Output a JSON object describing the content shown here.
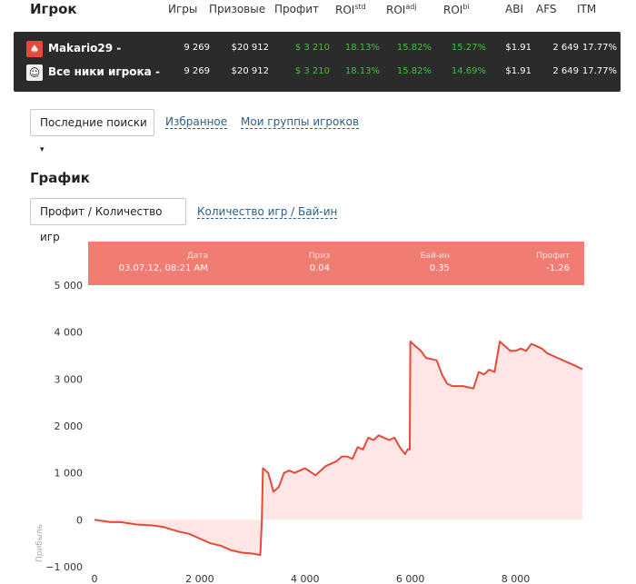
{
  "header": {
    "title": "Игрок",
    "columns": [
      {
        "label": "Игры",
        "sup": ""
      },
      {
        "label": "Призовые",
        "sup": ""
      },
      {
        "label": "Профит",
        "sup": ""
      },
      {
        "label": "ROI",
        "sup": "std"
      },
      {
        "label": "ROI",
        "sup": "adj"
      },
      {
        "label": "ROI",
        "sup": "bi"
      },
      {
        "label": "ABI",
        "sup": ""
      },
      {
        "label": "AFS",
        "sup": ""
      },
      {
        "label": "ITM",
        "sup": ""
      }
    ]
  },
  "players": [
    {
      "icon": "pokerstars-icon",
      "name": "Makario29",
      "games": "9 269",
      "prize": "$20 912",
      "profit": "$ 3 210",
      "roi_std": "18.13%",
      "roi_adj": "15.82%",
      "roi_bi": "15.27%",
      "abi": "$1.91",
      "afs": "2 649",
      "itm": "17.77%"
    },
    {
      "icon": "group-icon",
      "name": "Все ники игрока",
      "games": "9 269",
      "prize": "$20 912",
      "profit": "$ 3 210",
      "roi_std": "18.13%",
      "roi_adj": "15.82%",
      "roi_bi": "14.69%",
      "abi": "$1.91",
      "afs": "2 649",
      "itm": "17.77%"
    }
  ],
  "dropdown_caret": "-",
  "search": {
    "recent_label": "Последние поиски",
    "favorites_label": "Избранное",
    "groups_label": "Мои группы игроков"
  },
  "graph": {
    "heading": "График",
    "tab_active": "Профит / Количество игр",
    "tab_inactive": "Количество игр / Бай-ин"
  },
  "tooltip": {
    "date_label": "Дата",
    "date_value": "03.07.12, 08:21 AM",
    "prize_label": "Приз",
    "prize_value": "0.04",
    "buyin_label": "Бай-ин",
    "buyin_value": "0.35",
    "profit_label": "Профит",
    "profit_value": "-1.26"
  },
  "colors": {
    "line": "#e8483a",
    "fill": "#fde6e4",
    "tooltip": "#f07d72",
    "positive": "#3fbf3f",
    "dark_panel": "#2b2b2b"
  },
  "chart_data": {
    "type": "line",
    "ylabel": "Прибыль",
    "xlim": [
      0,
      9269
    ],
    "ylim": [
      -1000,
      5000
    ],
    "xticks": [
      0,
      2000,
      4000,
      6000,
      8000
    ],
    "yticks": [
      -1000,
      0,
      1000,
      2000,
      3000,
      4000,
      5000
    ],
    "xtick_labels": [
      "0",
      "2 000",
      "4 000",
      "6 000",
      "8 000"
    ],
    "ytick_labels": [
      "−1 000",
      "0",
      "1 000",
      "2 000",
      "3 000",
      "4 000",
      "5 000"
    ],
    "grid": false,
    "series": [
      {
        "x": [
          0,
          300,
          500,
          800,
          1100,
          1300,
          1600,
          1800,
          2000,
          2200,
          2400,
          2600,
          2800,
          3000,
          3150,
          3180,
          3200,
          3300,
          3400,
          3500,
          3600,
          3700,
          3800,
          4000,
          4200,
          4400,
          4600,
          4700,
          4800,
          4900,
          5000,
          5100,
          5200,
          5300,
          5400,
          5500,
          5600,
          5700,
          5800,
          5900,
          5950,
          5990,
          6000,
          6100,
          6200,
          6300,
          6500,
          6600,
          6700,
          6800,
          7000,
          7200,
          7300,
          7400,
          7500,
          7600,
          7700,
          7800,
          7900,
          8000,
          8100,
          8200,
          8300,
          8400,
          8500,
          8600,
          8700,
          8800,
          8900,
          9000,
          9100,
          9269
        ],
        "y": [
          0,
          -50,
          -50,
          -100,
          -120,
          -150,
          -250,
          -300,
          -400,
          -500,
          -550,
          -650,
          -700,
          -720,
          -750,
          0,
          1100,
          1000,
          600,
          700,
          1000,
          1050,
          1000,
          1100,
          950,
          1150,
          1250,
          1350,
          1350,
          1300,
          1550,
          1500,
          1750,
          1700,
          1800,
          1750,
          1700,
          1750,
          1550,
          1400,
          1500,
          1500,
          3800,
          3700,
          3600,
          3450,
          3400,
          3100,
          2900,
          2850,
          2850,
          2800,
          3150,
          3100,
          3200,
          3150,
          3800,
          3700,
          3600,
          3600,
          3650,
          3600,
          3750,
          3700,
          3650,
          3550,
          3500,
          3450,
          3400,
          3350,
          3300,
          3210
        ]
      }
    ]
  }
}
